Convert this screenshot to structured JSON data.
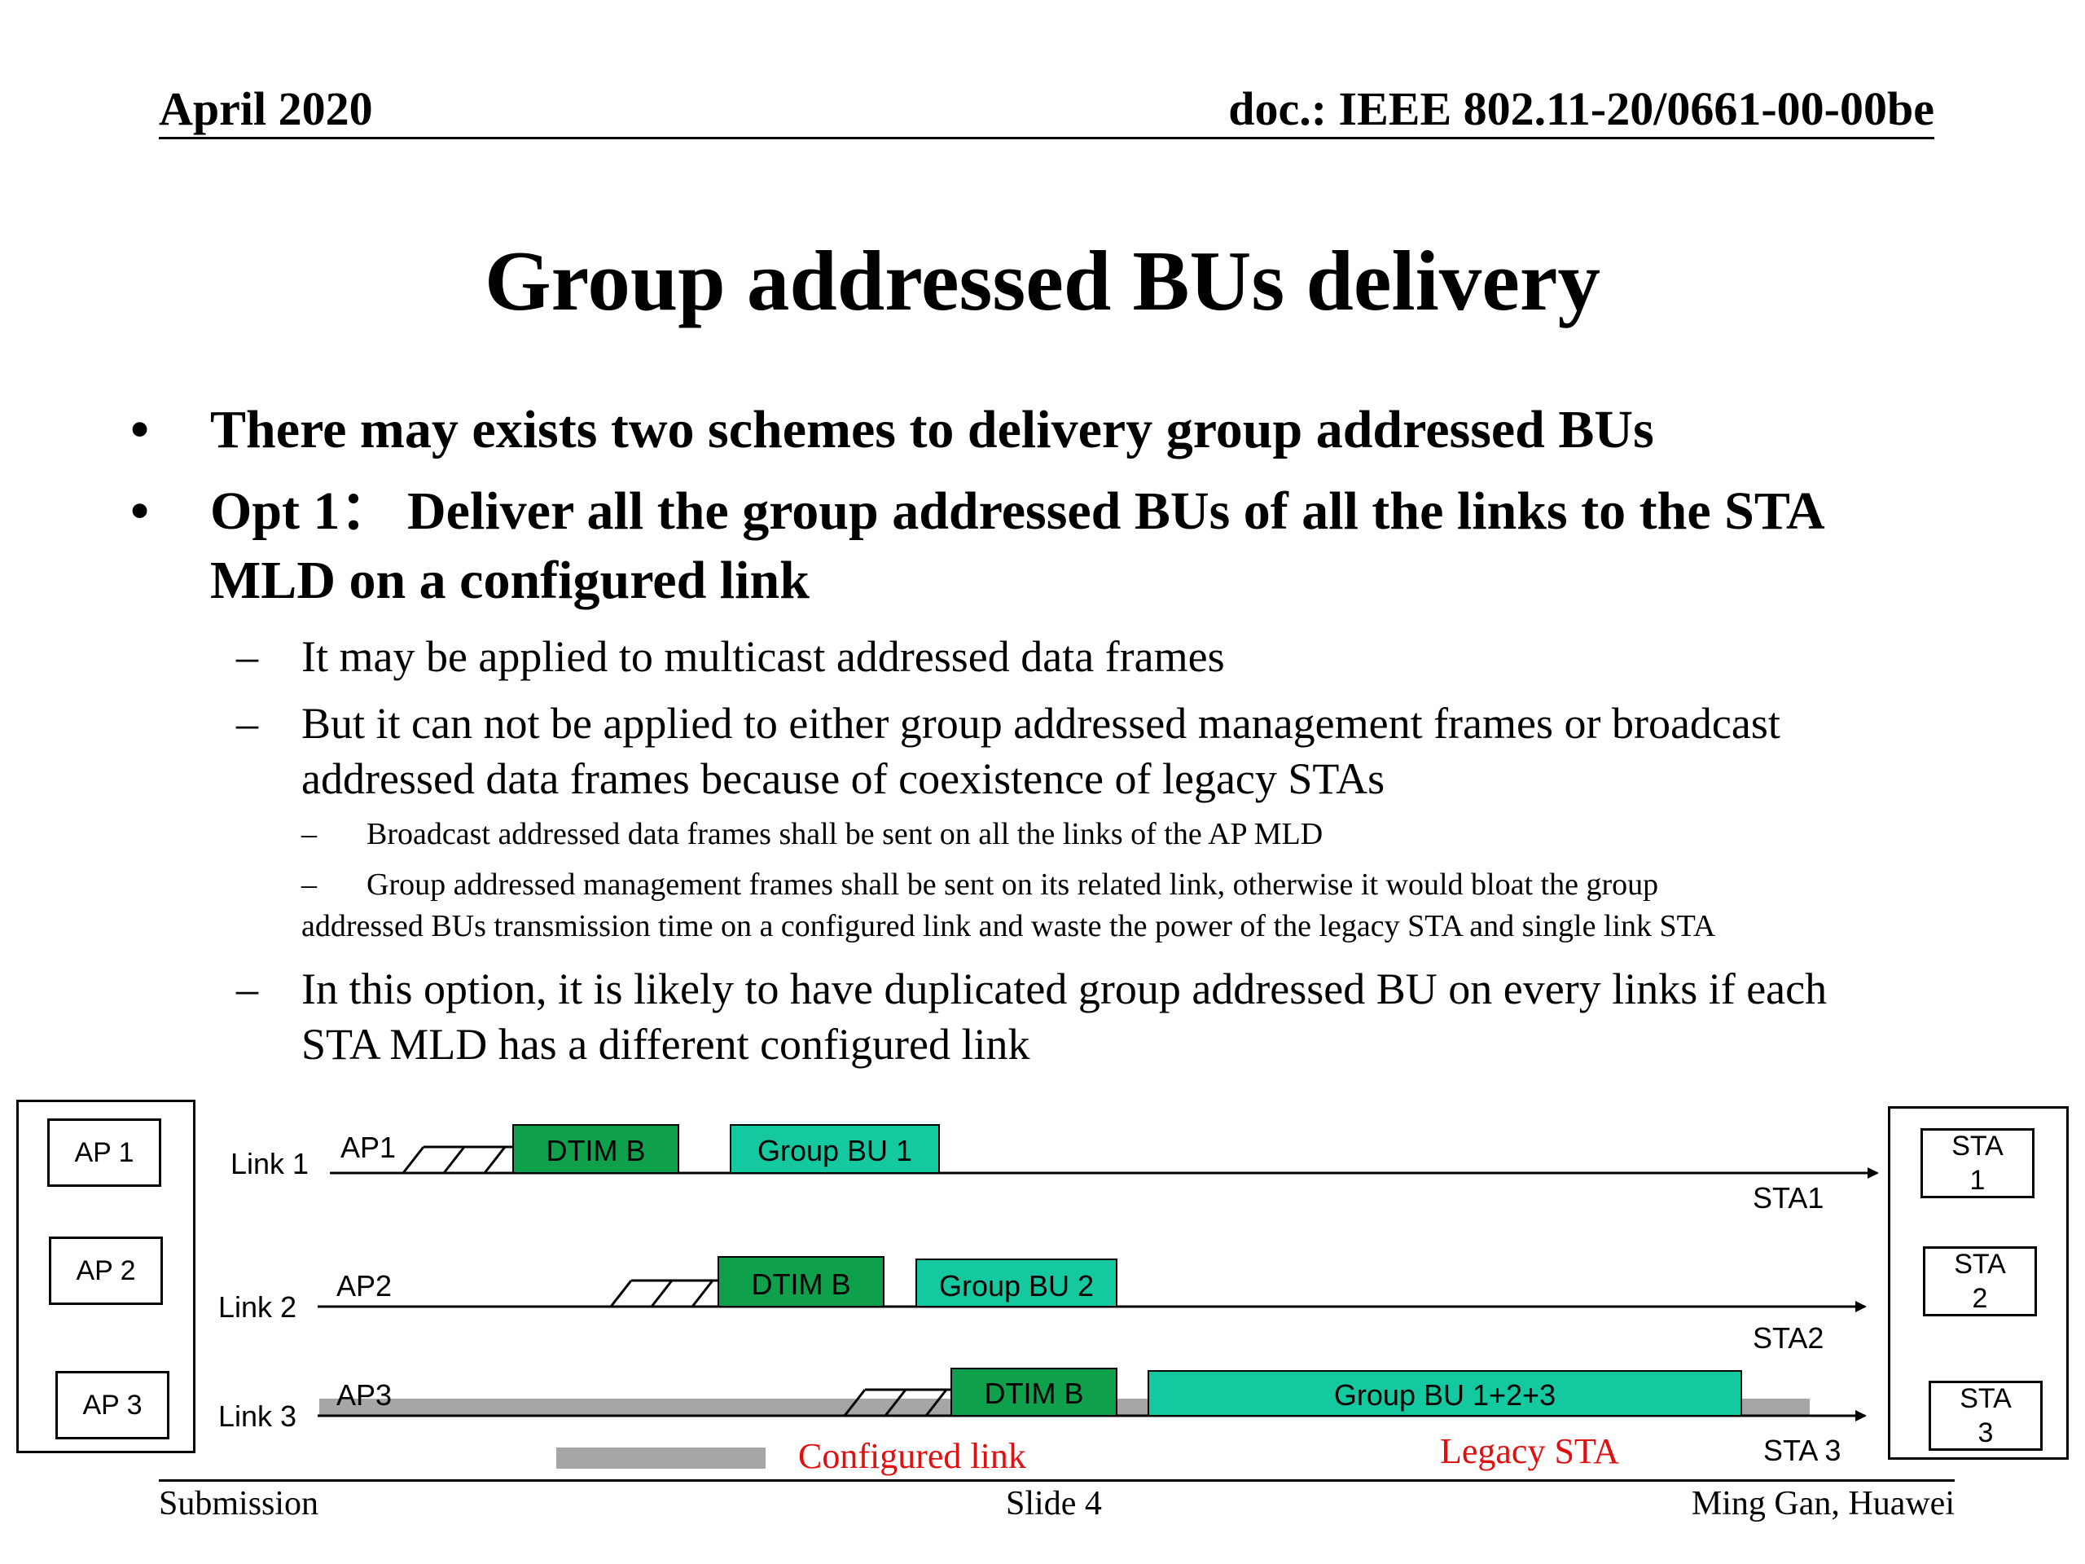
{
  "header": {
    "date": "April 2020",
    "doc": "doc.: IEEE 802.11-20/0661-00-00be"
  },
  "title": "Group addressed BUs delivery",
  "bullets": {
    "b1": "There may exists two schemes to delivery group addressed BUs",
    "b2_line1": "Opt 1： Deliver all the group addressed BUs of all the links to the STA",
    "b2_line2": "MLD on a configured link",
    "s1": "It may be applied to multicast addressed data frames",
    "s2_line1": "But it can not be applied to either group addressed management frames or broadcast",
    "s2_line2": "addressed data frames because of coexistence of legacy STAs",
    "ss1": "Broadcast addressed data frames shall be sent on all the links of the AP MLD",
    "ss2_line1": "Group addressed management frames shall be sent on its related link, otherwise it would bloat the group",
    "ss2_line2": "addressed BUs transmission time on a configured link and waste the power of the legacy STA and single link STA",
    "s3_line1": "In this option, it is likely to have duplicated group addressed BU on every links if each",
    "s3_line2": "STA MLD has a different configured link",
    "dash": "–",
    "dot": "•"
  },
  "diagram": {
    "aps": [
      "AP 1",
      "AP 2",
      "AP 3"
    ],
    "stas": [
      [
        "STA",
        "1"
      ],
      [
        "STA",
        "2"
      ],
      [
        "STA",
        "3"
      ]
    ],
    "links": [
      {
        "label": "Link 1",
        "ap": "AP1",
        "dtim": "DTIM B",
        "group": "Group BU 1",
        "sta": "STA1"
      },
      {
        "label": "Link 2",
        "ap": "AP2",
        "dtim": "DTIM B",
        "group": "Group BU 2",
        "sta": "STA2"
      },
      {
        "label": "Link 3",
        "ap": "AP3",
        "dtim": "DTIM B",
        "group": "Group BU 1+2+3",
        "sta": "STA 3"
      }
    ],
    "legend_configured": "Configured link",
    "legend_legacy": "Legacy STA",
    "colors": {
      "dtim": "#0ea04b",
      "group": "#14c8a0",
      "configured": "#a6a6a6",
      "legend_text": "#e01010"
    }
  },
  "footer": {
    "left": "Submission",
    "center": "Slide 4",
    "right": "Ming Gan, Huawei"
  }
}
